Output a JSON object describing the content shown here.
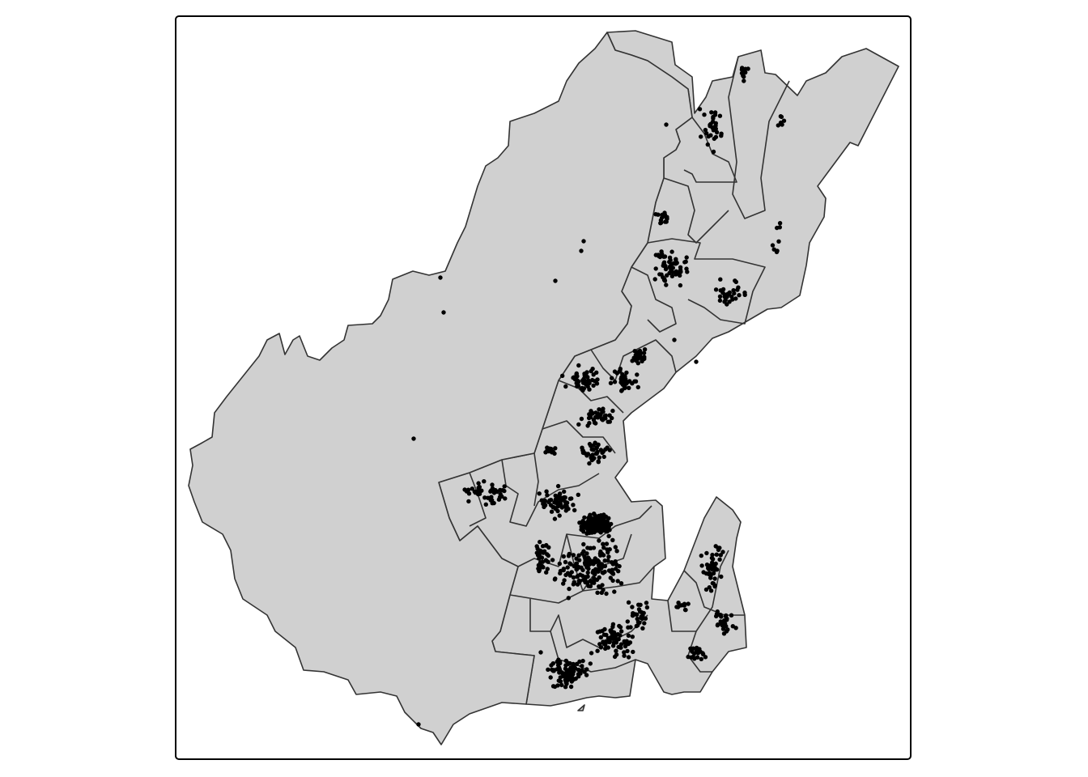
{
  "map": {
    "type": "point-in-polygon map",
    "region_fill": "#d0d0d0",
    "boundary_color": "#333333",
    "point_color": "#000000",
    "frame_color": "#000000",
    "layers": [
      "region-polygons",
      "event-points"
    ]
  }
}
